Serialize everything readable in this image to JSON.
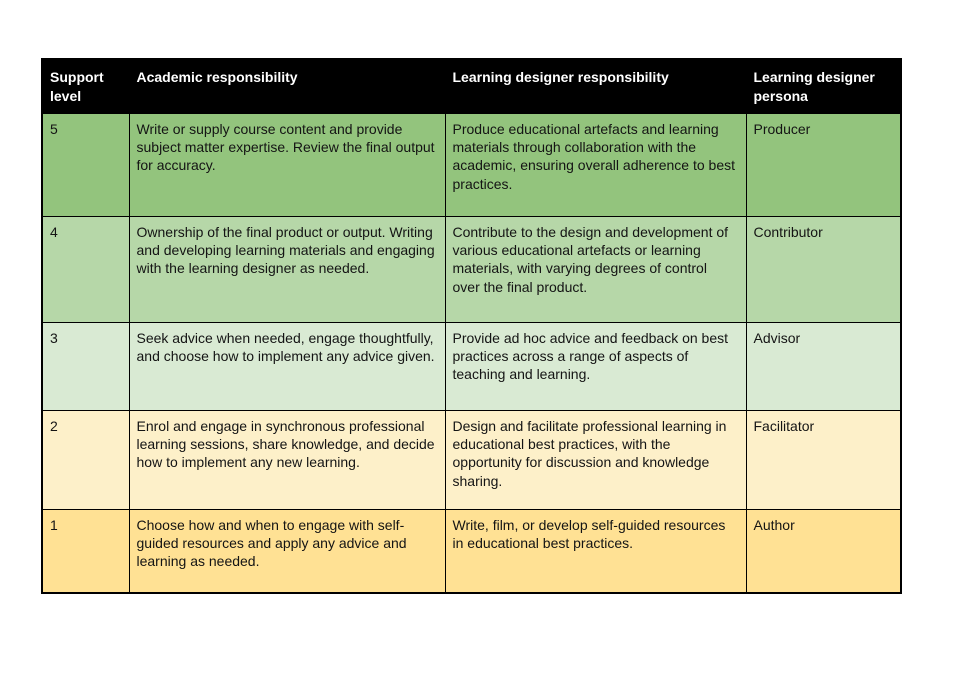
{
  "table": {
    "header_bg": "#000000",
    "header_text_color": "#ffffff",
    "border_color": "#000000",
    "headers": [
      "Support level",
      "Academic responsibility",
      "Learning designer responsibility",
      "Learning designer persona"
    ],
    "rows": [
      {
        "level": "5",
        "academic": "Write or supply course content and provide subject matter expertise. Review the final output for accuracy.",
        "designer": "Produce educational artefacts and learning materials through collaboration with the academic, ensuring overall adherence to best practices.",
        "persona": "Producer",
        "color": "#93c47d"
      },
      {
        "level": "4",
        "academic": "Ownership of the final product or output. Writing and developing learning materials and engaging with the learning designer as needed.",
        "designer": "Contribute to the design and development of various educational artefacts or learning materials, with varying degrees of control over the final product.",
        "persona": "Contributor",
        "color": "#b6d7a8"
      },
      {
        "level": "3",
        "academic": "Seek advice when needed, engage thoughtfully, and choose how to implement any advice given.",
        "designer": "Provide ad hoc advice and feedback on best practices across a range of aspects of teaching and learning.",
        "persona": "Advisor",
        "color": "#d9ead3"
      },
      {
        "level": "2",
        "academic": "Enrol and engage in synchronous professional learning sessions, share knowledge, and decide how to implement any new learning.",
        "designer": "Design and facilitate professional learning in educational best practices, with the opportunity for discussion and knowledge sharing.",
        "persona": "Facilitator",
        "color": "#fdf0c9"
      },
      {
        "level": "1",
        "academic": "Choose how and when to engage with self-guided resources and apply any advice and learning as needed.",
        "designer": "Write, film, or develop self-guided resources in educational best practices.",
        "persona": "Author",
        "color": "#ffe194"
      }
    ]
  }
}
